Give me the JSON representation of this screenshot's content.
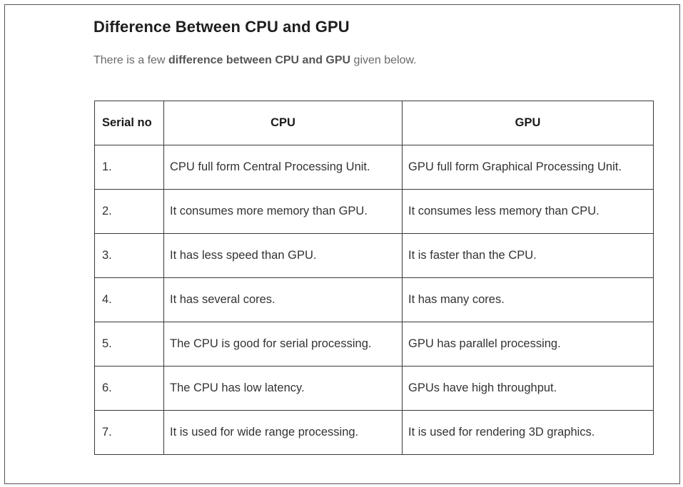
{
  "heading": "Difference Between CPU and GPU",
  "intro": {
    "prefix": "There is a few ",
    "emphasis": "difference between CPU and GPU",
    "suffix": " given below."
  },
  "table": {
    "headers": [
      "Serial no",
      "CPU",
      "GPU"
    ],
    "rows": [
      [
        "1.",
        "CPU full form Central Processing Unit.",
        "GPU full form Graphical Processing Unit."
      ],
      [
        "2.",
        "It consumes more memory than GPU.",
        "It consumes less memory than CPU."
      ],
      [
        "3.",
        "It has less speed than GPU.",
        "It is faster than the CPU."
      ],
      [
        "4.",
        "It has several cores.",
        "It has many cores."
      ],
      [
        "5.",
        "The CPU is good for serial processing.",
        "GPU has parallel processing."
      ],
      [
        "6.",
        "The CPU has low latency.",
        "GPUs have high throughput."
      ],
      [
        "7.",
        "It is used for wide range processing.",
        "It is used for rendering 3D graphics."
      ]
    ]
  }
}
